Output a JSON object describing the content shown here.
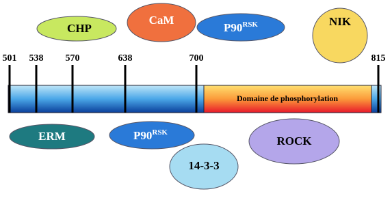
{
  "positions": [
    501,
    538,
    570,
    638,
    700,
    815
  ],
  "domain": {
    "label": "Domaine de phosphorylation"
  },
  "top_partners": [
    {
      "label": "CHP"
    },
    {
      "label": "CaM"
    },
    {
      "label": {
        "base": "P90",
        "sup": "RSK"
      }
    },
    {
      "label": "NIK"
    }
  ],
  "bottom_partners": [
    {
      "label": "ERM"
    },
    {
      "label": {
        "base": "P90",
        "sup": "RSK"
      }
    },
    {
      "label": "14-3-3"
    },
    {
      "label": "ROCK"
    }
  ]
}
